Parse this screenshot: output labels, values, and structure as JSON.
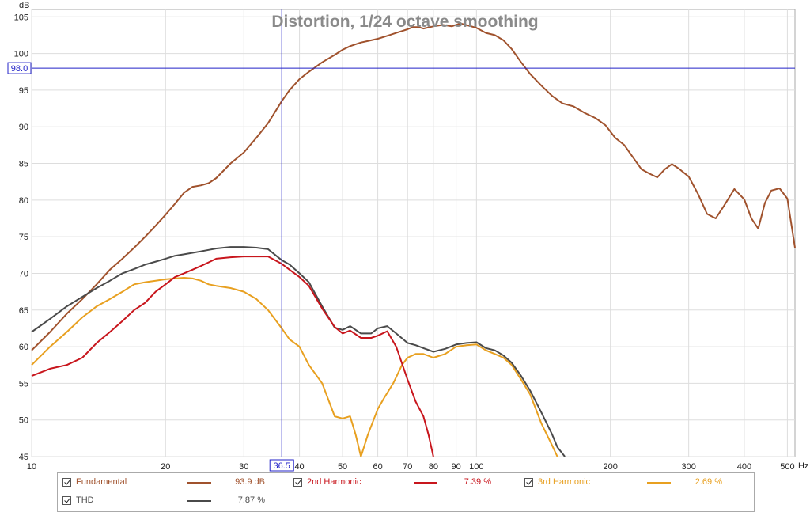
{
  "chart_data": {
    "type": "line",
    "title": "Distortion, 1/24 octave smoothing",
    "ylabel": "dB",
    "xunit": "Hz",
    "xscale": "log",
    "xlim": [
      10,
      520
    ],
    "ylim": [
      45,
      106
    ],
    "grid": true,
    "xticks": [
      "10",
      "20",
      "30",
      "40",
      "50",
      "60",
      "70",
      "80",
      "90",
      "100",
      "200",
      "300",
      "400",
      "500"
    ],
    "yticks": [
      "45",
      "50",
      "55",
      "60",
      "65",
      "70",
      "75",
      "80",
      "85",
      "90",
      "95",
      "100",
      "105"
    ],
    "cursor": {
      "x_label": "36.5",
      "y_label": "98.0"
    },
    "series": [
      {
        "name": "Fundamental",
        "color": "#a0522d",
        "legend_value": "93.9 dB",
        "x": [
          10,
          11,
          12,
          13,
          14,
          15,
          16,
          17,
          18,
          19,
          20,
          21,
          22,
          23,
          24,
          25,
          26,
          28,
          30,
          32,
          34,
          36.5,
          38,
          40,
          42,
          45,
          48,
          50,
          52,
          55,
          58,
          60,
          63,
          66,
          70,
          72,
          74,
          76,
          80,
          84,
          88,
          92,
          96,
          100,
          105,
          110,
          115,
          120,
          126,
          132,
          140,
          148,
          156,
          165,
          175,
          185,
          195,
          205,
          215,
          225,
          235,
          245,
          255,
          265,
          275,
          285,
          300,
          315,
          330,
          345,
          360,
          380,
          400,
          415,
          430,
          445,
          460,
          480,
          500,
          520
        ],
        "y": [
          59.5,
          62,
          64.5,
          66.5,
          68.5,
          70.5,
          72,
          73.5,
          75,
          76.5,
          78,
          79.5,
          81,
          81.8,
          82,
          82.3,
          83,
          85,
          86.5,
          88.5,
          90.5,
          93.5,
          95,
          96.5,
          97.5,
          98.8,
          99.8,
          100.5,
          101,
          101.5,
          101.8,
          102,
          102.4,
          102.8,
          103.3,
          103.6,
          103.6,
          103.4,
          103.7,
          103.9,
          103.7,
          104.1,
          103.8,
          103.5,
          102.8,
          102.5,
          101.8,
          100.6,
          98.8,
          97.2,
          95.6,
          94.2,
          93.2,
          92.8,
          91.9,
          91.2,
          90.2,
          88.5,
          87.5,
          85.8,
          84.2,
          83.6,
          83.1,
          84.2,
          84.9,
          84.3,
          83.2,
          80.8,
          78.1,
          77.5,
          79.2,
          81.5,
          80.1,
          77.5,
          76.1,
          79.6,
          81.3,
          81.6,
          80.2,
          73.5
        ]
      },
      {
        "name": "2nd Harmonic",
        "color": "#c8161d",
        "legend_value": "7.39 %",
        "x": [
          10,
          11,
          12,
          13,
          14,
          15,
          16,
          17,
          18,
          19,
          20,
          21,
          22,
          23,
          24,
          25,
          26,
          28,
          30,
          32,
          34,
          36.5,
          38,
          40,
          42,
          45,
          48,
          50,
          52,
          55,
          58,
          60,
          63,
          66,
          70,
          73,
          76,
          78,
          80
        ],
        "y": [
          56,
          57,
          57.5,
          58.5,
          60.5,
          62,
          63.5,
          65,
          66,
          67.5,
          68.5,
          69.5,
          70,
          70.5,
          71,
          71.5,
          72,
          72.2,
          72.3,
          72.3,
          72.3,
          71.3,
          70.5,
          69.5,
          68.3,
          65.2,
          62.7,
          61.8,
          62.2,
          61.2,
          61.2,
          61.5,
          62.1,
          60,
          55.5,
          52.5,
          50.5,
          48,
          45
        ]
      },
      {
        "name": "3rd Harmonic",
        "color": "#e8a020",
        "legend_value": "2.69 %",
        "x": [
          10,
          11,
          12,
          13,
          14,
          15,
          16,
          17,
          18,
          19,
          20,
          21,
          22,
          23,
          24,
          25,
          26,
          28,
          30,
          32,
          34,
          36.5,
          38,
          40,
          42,
          45,
          48,
          50,
          52,
          53.5,
          55,
          57,
          60,
          62,
          65,
          68,
          70,
          73,
          76,
          80,
          85,
          90,
          95,
          100,
          105,
          110,
          115,
          120,
          126,
          132,
          140,
          148,
          152
        ],
        "y": [
          57.5,
          60,
          62,
          64,
          65.5,
          66.5,
          67.5,
          68.5,
          68.8,
          69,
          69.2,
          69.3,
          69.4,
          69.3,
          69,
          68.5,
          68.3,
          68,
          67.5,
          66.5,
          65,
          62.5,
          61,
          60,
          57.5,
          55,
          50.5,
          50.2,
          50.5,
          48,
          45,
          48,
          51.5,
          53,
          55,
          57.5,
          58.5,
          59,
          59,
          58.5,
          59,
          60,
          60.2,
          60.3,
          59.5,
          59,
          58.5,
          57.5,
          55.5,
          53.5,
          49.5,
          46.5,
          45
        ]
      },
      {
        "name": "THD",
        "color": "#4a4a4a",
        "legend_value": "7.87 %",
        "x": [
          10,
          11,
          12,
          13,
          14,
          15,
          16,
          17,
          18,
          19,
          20,
          21,
          22,
          23,
          24,
          25,
          26,
          28,
          30,
          32,
          34,
          36.5,
          38,
          40,
          42,
          45,
          48,
          50,
          52,
          55,
          58,
          60,
          63,
          66,
          70,
          73,
          76,
          80,
          85,
          90,
          95,
          100,
          105,
          110,
          115,
          120,
          126,
          132,
          140,
          148,
          152,
          158
        ],
        "y": [
          62,
          63.8,
          65.5,
          66.8,
          68,
          69,
          70,
          70.6,
          71.2,
          71.6,
          72,
          72.4,
          72.6,
          72.8,
          73,
          73.2,
          73.4,
          73.6,
          73.6,
          73.5,
          73.3,
          71.8,
          71.2,
          70,
          68.8,
          65.5,
          62.6,
          62.3,
          62.8,
          61.8,
          61.8,
          62.5,
          62.8,
          61.8,
          60.5,
          60.2,
          59.8,
          59.3,
          59.7,
          60.3,
          60.5,
          60.6,
          59.8,
          59.5,
          58.8,
          57.8,
          56,
          54,
          51,
          48,
          46.3,
          45
        ]
      }
    ]
  }
}
